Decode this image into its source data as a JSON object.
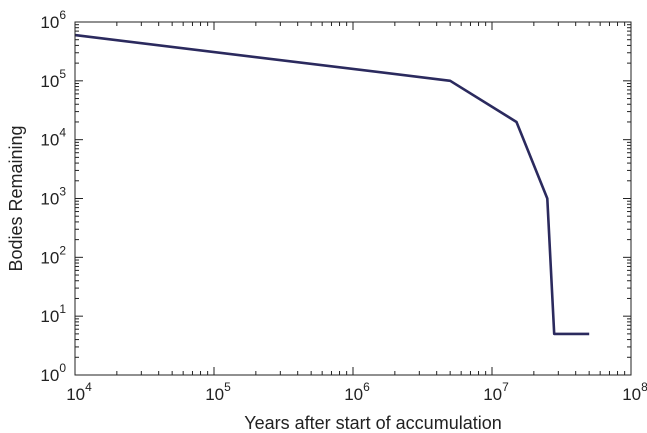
{
  "chart_data": {
    "type": "line",
    "title": "",
    "xlabel": "Years after start of accumulation",
    "ylabel": "Bodies Remaining",
    "x_scale": "log",
    "y_scale": "log",
    "xlim": [
      10000,
      100000000
    ],
    "ylim": [
      1,
      1000000
    ],
    "x_ticks": [
      {
        "base": "10",
        "exp": "4",
        "value": 10000
      },
      {
        "base": "10",
        "exp": "5",
        "value": 100000
      },
      {
        "base": "10",
        "exp": "6",
        "value": 1000000
      },
      {
        "base": "10",
        "exp": "7",
        "value": 10000000
      },
      {
        "base": "10",
        "exp": "8",
        "value": 100000000
      }
    ],
    "y_ticks": [
      {
        "base": "10",
        "exp": "0",
        "value": 1
      },
      {
        "base": "10",
        "exp": "1",
        "value": 10
      },
      {
        "base": "10",
        "exp": "2",
        "value": 100
      },
      {
        "base": "10",
        "exp": "3",
        "value": 1000
      },
      {
        "base": "10",
        "exp": "4",
        "value": 10000
      },
      {
        "base": "10",
        "exp": "5",
        "value": 100000
      },
      {
        "base": "10",
        "exp": "6",
        "value": 1000000
      }
    ],
    "grid": false,
    "line_color": "#2b2a5e",
    "series": [
      {
        "x": [
          10000,
          5000000,
          15000000,
          25000000,
          28000000,
          50000000
        ],
        "y": [
          600000,
          100000,
          20000,
          1000,
          5,
          5
        ]
      }
    ]
  }
}
